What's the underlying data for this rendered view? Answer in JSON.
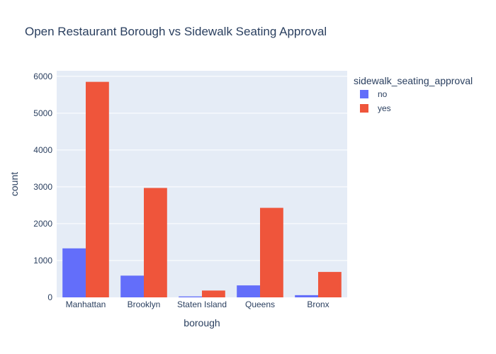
{
  "chart_data": {
    "type": "bar",
    "title": "Open Restaurant Borough vs Sidewalk Seating Approval",
    "xlabel": "borough",
    "ylabel": "count",
    "categories": [
      "Manhattan",
      "Brooklyn",
      "Staten Island",
      "Queens",
      "Bronx"
    ],
    "series": [
      {
        "name": "no",
        "values": [
          1330,
          590,
          25,
          325,
          60
        ],
        "color": "#636efa"
      },
      {
        "name": "yes",
        "values": [
          5850,
          2970,
          185,
          2430,
          690
        ],
        "color": "#ef553b"
      }
    ],
    "ylim": [
      0,
      6150
    ],
    "yticks": [
      0,
      1000,
      2000,
      3000,
      4000,
      5000,
      6000
    ],
    "ytick_labels": [
      "0",
      "1000",
      "2000",
      "3000",
      "4000",
      "5000",
      "6000"
    ],
    "grid": true,
    "plot_background": "#e5ecf6",
    "legend": {
      "title": "sidewalk_seating_approval",
      "placement": "top-right"
    }
  }
}
